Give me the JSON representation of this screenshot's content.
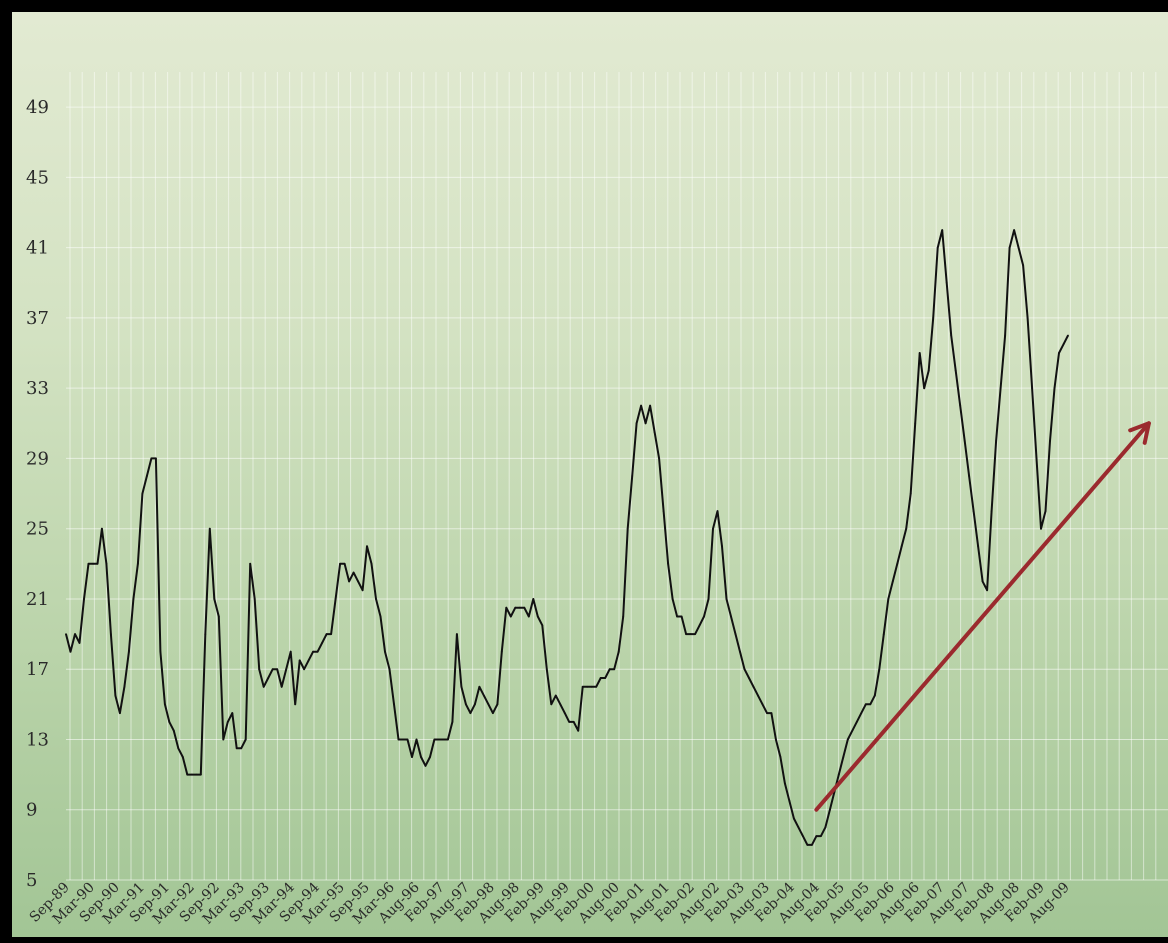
{
  "chart_data": {
    "type": "line",
    "title": "",
    "xlabel": "",
    "ylabel": "",
    "ylim": [
      5,
      51
    ],
    "yticks": [
      5,
      9,
      13,
      17,
      21,
      25,
      29,
      33,
      37,
      41,
      45,
      49
    ],
    "grid": true,
    "x_tick_labels": [
      "Sep-89",
      "Mar-90",
      "Sep-90",
      "Mar-91",
      "Sep-91",
      "Mar-92",
      "Sep-92",
      "Mar-93",
      "Sep-93",
      "Mar-94",
      "Sep-94",
      "Mar-95",
      "Sep-95",
      "Mar-96",
      "Aug-96",
      "Feb-97",
      "Aug-97",
      "Feb-98",
      "Aug-98",
      "Feb-99",
      "Aug-99",
      "Feb-00",
      "Aug-00",
      "Feb-01",
      "Aug-01",
      "Feb-02",
      "Aug-02",
      "Feb-03",
      "Aug-03",
      "Feb-04",
      "Aug-04",
      "Feb-05",
      "Aug-05",
      "Feb-06",
      "Aug-06",
      "Feb-07",
      "Aug-07",
      "Feb-08",
      "Aug-08",
      "Feb-09",
      "Aug-09"
    ],
    "series": [
      {
        "line_color": "#111111",
        "points": [
          [
            "Sep-89",
            19
          ],
          [
            "Oct-89",
            18
          ],
          [
            "Nov-89",
            19
          ],
          [
            "Dec-89",
            18.5
          ],
          [
            "Jan-90",
            21
          ],
          [
            "Feb-90",
            23
          ],
          [
            "Mar-90",
            23
          ],
          [
            "Apr-90",
            23
          ],
          [
            "May-90",
            25
          ],
          [
            "Jun-90",
            23
          ],
          [
            "Jul-90",
            19
          ],
          [
            "Aug-90",
            15.5
          ],
          [
            "Sep-90",
            14.5
          ],
          [
            "Oct-90",
            16
          ],
          [
            "Nov-90",
            18
          ],
          [
            "Dec-90",
            21
          ],
          [
            "Jan-91",
            23
          ],
          [
            "Feb-91",
            27
          ],
          [
            "Mar-91",
            28
          ],
          [
            "Apr-91",
            29
          ],
          [
            "May-91",
            29
          ],
          [
            "Jun-91",
            18
          ],
          [
            "Jul-91",
            15
          ],
          [
            "Aug-91",
            14
          ],
          [
            "Sep-91",
            13.5
          ],
          [
            "Oct-91",
            12.5
          ],
          [
            "Nov-91",
            12
          ],
          [
            "Dec-91",
            11
          ],
          [
            "Jan-92",
            11
          ],
          [
            "Feb-92",
            11
          ],
          [
            "Mar-92",
            11
          ],
          [
            "Apr-92",
            19
          ],
          [
            "May-92",
            25
          ],
          [
            "Jun-92",
            21
          ],
          [
            "Jul-92",
            20
          ],
          [
            "Aug-92",
            13
          ],
          [
            "Sep-92",
            14
          ],
          [
            "Oct-92",
            14.5
          ],
          [
            "Nov-92",
            12.5
          ],
          [
            "Dec-92",
            12.5
          ],
          [
            "Jan-93",
            13
          ],
          [
            "Feb-93",
            23
          ],
          [
            "Mar-93",
            21
          ],
          [
            "Apr-93",
            17
          ],
          [
            "May-93",
            16
          ],
          [
            "Jun-93",
            16.5
          ],
          [
            "Jul-93",
            17
          ],
          [
            "Aug-93",
            17
          ],
          [
            "Sep-93",
            16
          ],
          [
            "Oct-93",
            17
          ],
          [
            "Nov-93",
            18
          ],
          [
            "Dec-93",
            15
          ],
          [
            "Jan-94",
            17.5
          ],
          [
            "Feb-94",
            17
          ],
          [
            "Mar-94",
            17.5
          ],
          [
            "Apr-94",
            18
          ],
          [
            "May-94",
            18
          ],
          [
            "Jun-94",
            18.5
          ],
          [
            "Jul-94",
            19
          ],
          [
            "Aug-94",
            19
          ],
          [
            "Sep-94",
            21
          ],
          [
            "Oct-94",
            23
          ],
          [
            "Nov-94",
            23
          ],
          [
            "Dec-94",
            22
          ],
          [
            "Jan-95",
            22.5
          ],
          [
            "Feb-95",
            22
          ],
          [
            "Mar-95",
            21.5
          ],
          [
            "Apr-95",
            24
          ],
          [
            "May-95",
            23
          ],
          [
            "Jun-95",
            21
          ],
          [
            "Jul-95",
            20
          ],
          [
            "Aug-95",
            18
          ],
          [
            "Sep-95",
            17
          ],
          [
            "Oct-95",
            15
          ],
          [
            "Nov-95",
            13
          ],
          [
            "Dec-95",
            13
          ],
          [
            "Jan-96",
            13
          ],
          [
            "Feb-96",
            12
          ],
          [
            "Mar-96",
            13
          ],
          [
            "Apr-96",
            12
          ],
          [
            "May-96",
            11.5
          ],
          [
            "Jun-96",
            12
          ],
          [
            "Jul-96",
            13
          ],
          [
            "Aug-96",
            13
          ],
          [
            "Sep-96",
            13
          ],
          [
            "Oct-96",
            13
          ],
          [
            "Nov-96",
            14
          ],
          [
            "Dec-96",
            19
          ],
          [
            "Jan-97",
            16
          ],
          [
            "Feb-97",
            15
          ],
          [
            "Mar-97",
            14.5
          ],
          [
            "Apr-97",
            15
          ],
          [
            "May-97",
            16
          ],
          [
            "Jun-97",
            15.5
          ],
          [
            "Jul-97",
            15
          ],
          [
            "Aug-97",
            14.5
          ],
          [
            "Sep-97",
            15
          ],
          [
            "Oct-97",
            18
          ],
          [
            "Nov-97",
            20.5
          ],
          [
            "Dec-97",
            20
          ],
          [
            "Jan-98",
            20.5
          ],
          [
            "Feb-98",
            20.5
          ],
          [
            "Mar-98",
            20.5
          ],
          [
            "Apr-98",
            20
          ],
          [
            "May-98",
            21
          ],
          [
            "Jun-98",
            20
          ],
          [
            "Jul-98",
            19.5
          ],
          [
            "Aug-98",
            17
          ],
          [
            "Sep-98",
            15
          ],
          [
            "Oct-98",
            15.5
          ],
          [
            "Nov-98",
            15
          ],
          [
            "Dec-98",
            14.5
          ],
          [
            "Jan-99",
            14
          ],
          [
            "Feb-99",
            14
          ],
          [
            "Mar-99",
            13.5
          ],
          [
            "Apr-99",
            16
          ],
          [
            "May-99",
            16
          ],
          [
            "Jun-99",
            16
          ],
          [
            "Jul-99",
            16
          ],
          [
            "Aug-99",
            16.5
          ],
          [
            "Sep-99",
            16.5
          ],
          [
            "Oct-99",
            17
          ],
          [
            "Nov-99",
            17
          ],
          [
            "Dec-99",
            18
          ],
          [
            "Jan-00",
            20
          ],
          [
            "Feb-00",
            25
          ],
          [
            "Mar-00",
            28
          ],
          [
            "Apr-00",
            31
          ],
          [
            "May-00",
            32
          ],
          [
            "Jun-00",
            31
          ],
          [
            "Jul-00",
            32
          ],
          [
            "Aug-00",
            30.5
          ],
          [
            "Sep-00",
            29
          ],
          [
            "Oct-00",
            26
          ],
          [
            "Nov-00",
            23
          ],
          [
            "Dec-00",
            21
          ],
          [
            "Jan-01",
            20
          ],
          [
            "Feb-01",
            20
          ],
          [
            "Mar-01",
            19
          ],
          [
            "Apr-01",
            19
          ],
          [
            "May-01",
            19
          ],
          [
            "Jun-01",
            19.5
          ],
          [
            "Jul-01",
            20
          ],
          [
            "Aug-01",
            21
          ],
          [
            "Sep-01",
            25
          ],
          [
            "Oct-01",
            26
          ],
          [
            "Nov-01",
            24
          ],
          [
            "Dec-01",
            21
          ],
          [
            "Jan-02",
            20
          ],
          [
            "Feb-02",
            19
          ],
          [
            "Mar-02",
            18
          ],
          [
            "Apr-02",
            17
          ],
          [
            "May-02",
            16.5
          ],
          [
            "Jun-02",
            16
          ],
          [
            "Jul-02",
            15.5
          ],
          [
            "Aug-02",
            15
          ],
          [
            "Sep-02",
            14.5
          ],
          [
            "Oct-02",
            14.5
          ],
          [
            "Nov-02",
            13
          ],
          [
            "Dec-02",
            12
          ],
          [
            "Jan-03",
            10.5
          ],
          [
            "Feb-03",
            9.5
          ],
          [
            "Mar-03",
            8.5
          ],
          [
            "Apr-03",
            8
          ],
          [
            "May-03",
            7.5
          ],
          [
            "Jun-03",
            7
          ],
          [
            "Jul-03",
            7
          ],
          [
            "Aug-03",
            7.5
          ],
          [
            "Sep-03",
            7.5
          ],
          [
            "Oct-03",
            8
          ],
          [
            "Nov-03",
            9
          ],
          [
            "Dec-03",
            10
          ],
          [
            "Jan-04",
            11
          ],
          [
            "Feb-04",
            12
          ],
          [
            "Mar-04",
            13
          ],
          [
            "Apr-04",
            13.5
          ],
          [
            "May-04",
            14
          ],
          [
            "Jun-04",
            14.5
          ],
          [
            "Jul-04",
            15
          ],
          [
            "Aug-04",
            15
          ],
          [
            "Sep-04",
            15.5
          ],
          [
            "Oct-04",
            17
          ],
          [
            "Nov-04",
            19
          ],
          [
            "Dec-04",
            21
          ],
          [
            "Jan-05",
            22
          ],
          [
            "Feb-05",
            23
          ],
          [
            "Mar-05",
            24
          ],
          [
            "Apr-05",
            25
          ],
          [
            "May-05",
            27
          ],
          [
            "Jun-05",
            31
          ],
          [
            "Jul-05",
            35
          ],
          [
            "Aug-05",
            33
          ],
          [
            "Sep-05",
            34
          ],
          [
            "Oct-05",
            37
          ],
          [
            "Nov-05",
            41
          ],
          [
            "Dec-05",
            42
          ],
          [
            "Jan-06",
            39
          ],
          [
            "Feb-06",
            36
          ],
          [
            "Mar-06",
            34
          ],
          [
            "Apr-06",
            32
          ],
          [
            "May-06",
            30
          ],
          [
            "Jun-06",
            28
          ],
          [
            "Jul-06",
            26
          ],
          [
            "Aug-06",
            24
          ],
          [
            "Sep-06",
            22
          ],
          [
            "Oct-06",
            21.5
          ],
          [
            "Nov-06",
            26
          ],
          [
            "Dec-06",
            30
          ],
          [
            "Jan-07",
            33
          ],
          [
            "Feb-07",
            36
          ],
          [
            "Mar-07",
            41
          ],
          [
            "Apr-07",
            42
          ],
          [
            "May-07",
            41
          ],
          [
            "Jun-07",
            40
          ],
          [
            "Jul-07",
            37
          ],
          [
            "Aug-07",
            33
          ],
          [
            "Sep-07",
            29
          ],
          [
            "Oct-07",
            25
          ],
          [
            "Nov-07",
            26
          ],
          [
            "Dec-07",
            30
          ],
          [
            "Jan-08",
            33
          ],
          [
            "Feb-08",
            35
          ],
          [
            "Mar-08",
            35.5
          ],
          [
            "Apr-08",
            36
          ]
        ]
      }
    ],
    "annotations": [
      {
        "type": "arrow",
        "color": "#9b2a2e",
        "from": [
          "Aug-03",
          9
        ],
        "to": [
          "Oct-09",
          31
        ]
      }
    ]
  }
}
